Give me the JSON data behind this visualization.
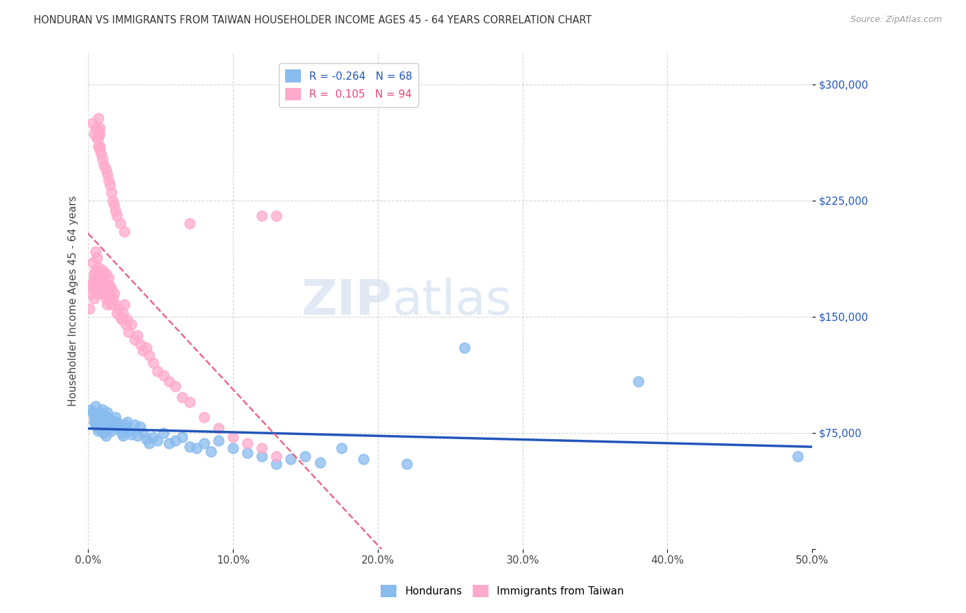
{
  "title": "HONDURAN VS IMMIGRANTS FROM TAIWAN HOUSEHOLDER INCOME AGES 45 - 64 YEARS CORRELATION CHART",
  "source": "Source: ZipAtlas.com",
  "ylabel": "Householder Income Ages 45 - 64 years",
  "xmin": 0.0,
  "xmax": 0.5,
  "ymin": 0,
  "ymax": 320000,
  "yticks": [
    0,
    75000,
    150000,
    225000,
    300000
  ],
  "ytick_labels": [
    "",
    "$75,000",
    "$150,000",
    "$225,000",
    "$300,000"
  ],
  "xtick_labels": [
    "0.0%",
    "10.0%",
    "20.0%",
    "30.0%",
    "40.0%",
    "50.0%"
  ],
  "xticks": [
    0.0,
    0.1,
    0.2,
    0.3,
    0.4,
    0.5
  ],
  "blue_color": "#88BBEE",
  "pink_color": "#FFAACC",
  "trend_blue_color": "#2255BB",
  "trend_pink_color": "#EE6688",
  "blue_R": -0.264,
  "blue_N": 68,
  "pink_R": 0.105,
  "pink_N": 94,
  "watermark_zip": "ZIP",
  "watermark_atlas": "atlas",
  "background_color": "#FFFFFF",
  "legend_label_blue": "Hondurans",
  "legend_label_pink": "Immigrants from Taiwan",
  "blue_scatter_x": [
    0.002,
    0.003,
    0.004,
    0.004,
    0.005,
    0.005,
    0.006,
    0.006,
    0.007,
    0.007,
    0.008,
    0.008,
    0.009,
    0.009,
    0.01,
    0.01,
    0.011,
    0.011,
    0.012,
    0.012,
    0.013,
    0.013,
    0.014,
    0.015,
    0.016,
    0.017,
    0.018,
    0.019,
    0.02,
    0.021,
    0.022,
    0.023,
    0.024,
    0.025,
    0.026,
    0.027,
    0.028,
    0.03,
    0.032,
    0.034,
    0.036,
    0.038,
    0.04,
    0.042,
    0.045,
    0.048,
    0.052,
    0.056,
    0.06,
    0.065,
    0.07,
    0.075,
    0.08,
    0.085,
    0.09,
    0.1,
    0.11,
    0.12,
    0.13,
    0.14,
    0.15,
    0.16,
    0.175,
    0.19,
    0.22,
    0.26,
    0.38,
    0.49
  ],
  "blue_scatter_y": [
    90000,
    88000,
    85000,
    82000,
    80000,
    92000,
    87000,
    79000,
    84000,
    76000,
    88000,
    83000,
    81000,
    77000,
    90000,
    85000,
    79000,
    75000,
    86000,
    73000,
    88000,
    80000,
    84000,
    78000,
    76000,
    83000,
    80000,
    85000,
    82000,
    79000,
    77000,
    75000,
    73000,
    80000,
    78000,
    82000,
    76000,
    74000,
    80000,
    73000,
    79000,
    75000,
    71000,
    68000,
    72000,
    70000,
    75000,
    68000,
    70000,
    72000,
    66000,
    65000,
    68000,
    63000,
    70000,
    65000,
    62000,
    60000,
    55000,
    58000,
    60000,
    56000,
    65000,
    58000,
    55000,
    130000,
    108000,
    60000
  ],
  "pink_scatter_x": [
    0.001,
    0.002,
    0.002,
    0.003,
    0.003,
    0.004,
    0.004,
    0.005,
    0.005,
    0.006,
    0.006,
    0.007,
    0.007,
    0.007,
    0.008,
    0.008,
    0.008,
    0.009,
    0.009,
    0.01,
    0.01,
    0.011,
    0.011,
    0.012,
    0.012,
    0.013,
    0.013,
    0.014,
    0.014,
    0.015,
    0.015,
    0.016,
    0.016,
    0.017,
    0.018,
    0.019,
    0.02,
    0.021,
    0.022,
    0.023,
    0.024,
    0.025,
    0.026,
    0.027,
    0.028,
    0.03,
    0.032,
    0.034,
    0.036,
    0.038,
    0.04,
    0.042,
    0.045,
    0.048,
    0.052,
    0.056,
    0.06,
    0.065,
    0.07,
    0.08,
    0.09,
    0.1,
    0.11,
    0.12,
    0.13,
    0.003,
    0.004,
    0.005,
    0.006,
    0.007,
    0.008,
    0.009,
    0.01,
    0.011,
    0.012,
    0.013,
    0.014,
    0.015,
    0.016,
    0.017,
    0.018,
    0.019,
    0.02,
    0.022,
    0.025,
    0.003,
    0.004,
    0.005,
    0.006,
    0.007,
    0.13,
    0.015,
    0.12,
    0.07
  ],
  "pink_scatter_y": [
    155000,
    165000,
    170000,
    172000,
    168000,
    175000,
    162000,
    180000,
    170000,
    175000,
    165000,
    278000,
    270000,
    265000,
    272000,
    268000,
    260000,
    175000,
    168000,
    180000,
    170000,
    175000,
    165000,
    178000,
    162000,
    170000,
    158000,
    175000,
    165000,
    170000,
    162000,
    168000,
    158000,
    162000,
    165000,
    158000,
    152000,
    155000,
    150000,
    148000,
    152000,
    158000,
    145000,
    148000,
    140000,
    145000,
    135000,
    138000,
    132000,
    128000,
    130000,
    125000,
    120000,
    115000,
    112000,
    108000,
    105000,
    98000,
    95000,
    85000,
    78000,
    72000,
    68000,
    65000,
    60000,
    275000,
    268000,
    272000,
    265000,
    260000,
    258000,
    255000,
    252000,
    248000,
    245000,
    242000,
    238000,
    235000,
    230000,
    225000,
    222000,
    218000,
    215000,
    210000,
    205000,
    185000,
    178000,
    192000,
    188000,
    182000,
    215000,
    160000,
    215000,
    210000
  ]
}
